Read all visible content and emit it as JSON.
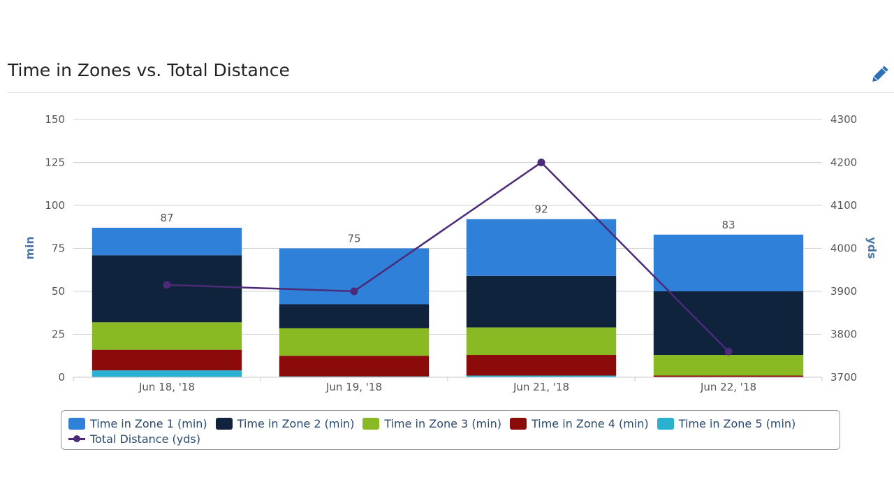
{
  "header": {
    "title": "Time in Zones vs. Total Distance"
  },
  "icons": {
    "edit": "pencil-icon"
  },
  "chart_data": {
    "type": "bar",
    "stacked": true,
    "title": "Time in Zones vs. Total Distance",
    "categories": [
      "Jun 18, '18",
      "Jun 19, '18",
      "Jun 21, '18",
      "Jun 22, '18"
    ],
    "totals": [
      87,
      75,
      92,
      83
    ],
    "ylabel": "min",
    "y2label": "yds",
    "ylim": [
      0,
      150
    ],
    "yticks": [
      0,
      25,
      50,
      75,
      100,
      125,
      150
    ],
    "y2lim": [
      3700,
      4300
    ],
    "y2ticks": [
      3700,
      3800,
      3900,
      4000,
      4100,
      4200,
      4300
    ],
    "grid": true,
    "legend_position": "bottom",
    "series": [
      {
        "name": "Time in Zone 5 (min)",
        "color": "#2ab0d0",
        "values": [
          4,
          0.5,
          1,
          0
        ]
      },
      {
        "name": "Time in Zone 4 (min)",
        "color": "#8b0a0a",
        "values": [
          12,
          12,
          12,
          1
        ]
      },
      {
        "name": "Time in Zone 3 (min)",
        "color": "#8aba23",
        "values": [
          16,
          16,
          16,
          12
        ]
      },
      {
        "name": "Time in Zone 2 (min)",
        "color": "#10233d",
        "values": [
          39,
          14,
          30,
          37
        ]
      },
      {
        "name": "Time in Zone 1 (min)",
        "color": "#2f80d9",
        "values": [
          16,
          32.5,
          33,
          33
        ]
      }
    ],
    "line_series": {
      "name": "Total Distance (yds)",
      "color": "#4b2a78",
      "axis": "right",
      "values": [
        3915,
        3900,
        4200,
        3760
      ]
    }
  },
  "legend": {
    "row1": [
      "Time in Zone 1 (min)",
      "Time in Zone 2 (min)",
      "Time in Zone 3 (min)",
      "Time in Zone 4 (min)",
      "Time in Zone 5 (min)"
    ],
    "row1_colors": [
      "#2f80d9",
      "#10233d",
      "#8aba23",
      "#8b0a0a",
      "#2ab0d0"
    ],
    "row2": "Total Distance (yds)",
    "row2_color": "#4b2a78"
  }
}
